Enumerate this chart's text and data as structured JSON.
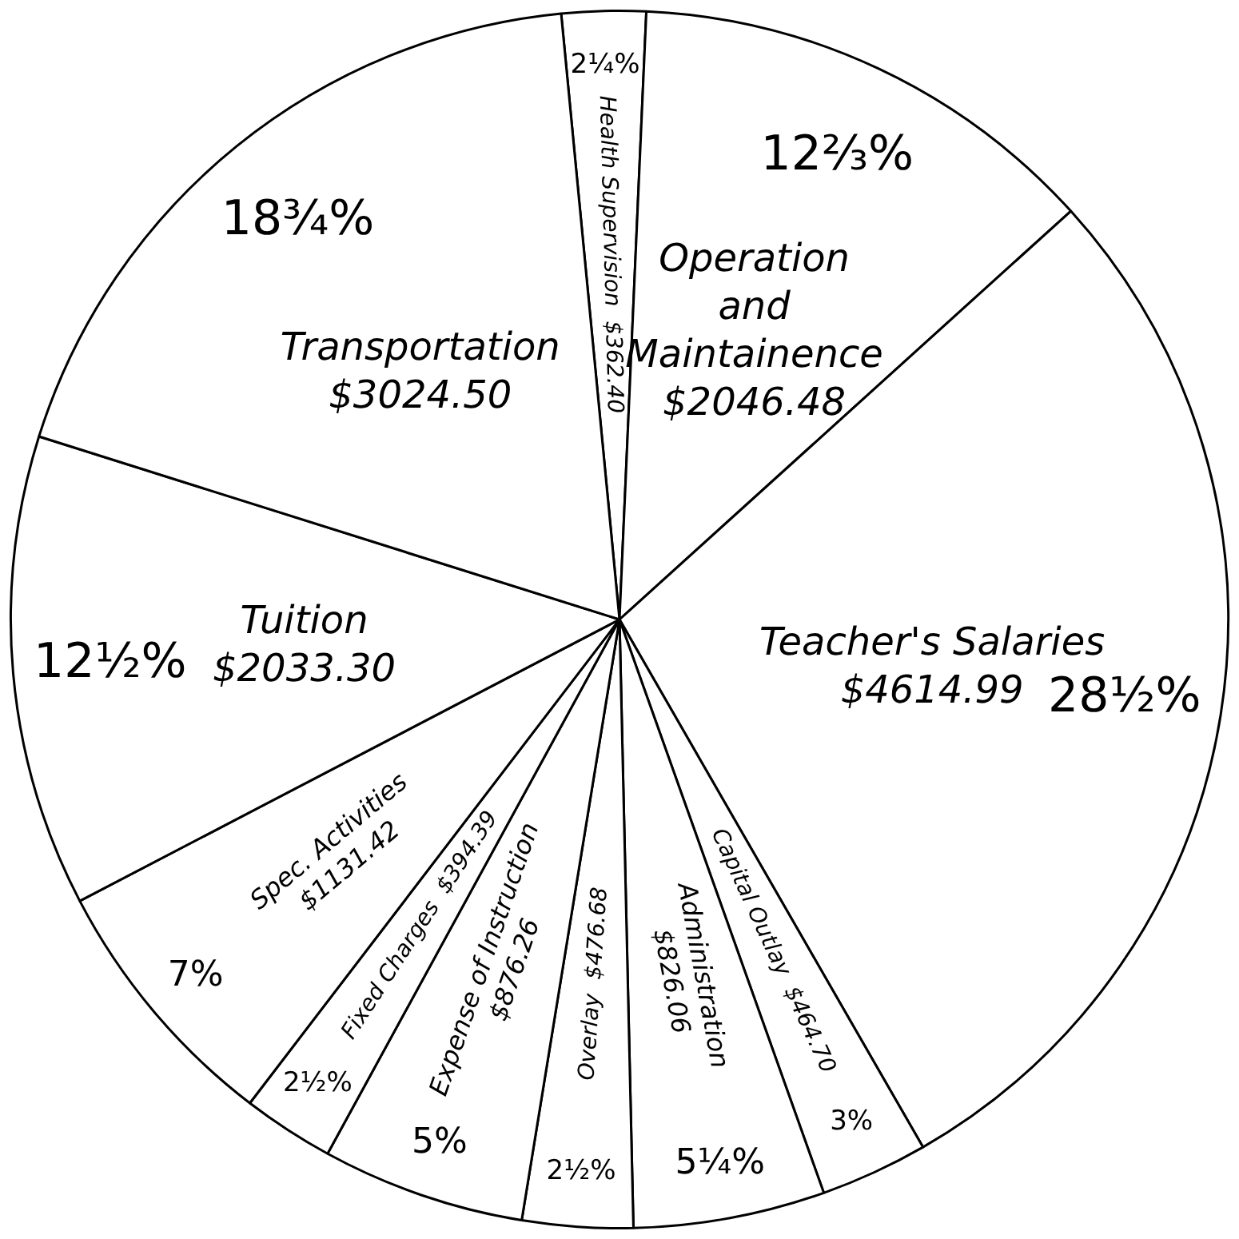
{
  "chart_data": {
    "type": "pie",
    "categories": [
      "Health Supervision",
      "Operation and Maintainence",
      "Teacher's Salaries",
      "Capital Outlay",
      "Administration",
      "Overlay",
      "Expense of Instruction",
      "Fixed Charges",
      "Spec. Activities",
      "Tuition",
      "Transportation"
    ],
    "values": [
      362.4,
      2046.48,
      4614.99,
      464.7,
      826.06,
      476.68,
      876.26,
      394.39,
      1131.42,
      2033.3,
      3024.5
    ],
    "value_labels": [
      "$362.40",
      "$2046.48",
      "$4614.99",
      "$464.70",
      "$826.06",
      "$476.68",
      "$876.26",
      "$394.39",
      "$1131.42",
      "$2033.30",
      "$3024.50"
    ],
    "colors": [
      "#ffffff",
      "#ffffff",
      "#ffffff",
      "#ffffff",
      "#ffffff",
      "#ffffff",
      "#ffffff",
      "#ffffff",
      "#ffffff",
      "#ffffff",
      "#ffffff"
    ],
    "annotations": [
      {
        "text": "2¼%",
        "x": "Health Supervision"
      },
      {
        "text": "12⅔%",
        "x": "Operation and Maintainence"
      },
      {
        "text": "28½%",
        "x": "Teacher's Salaries"
      },
      {
        "text": "3%",
        "x": "Capital Outlay"
      },
      {
        "text": "5¼%",
        "x": "Administration"
      },
      {
        "text": "2½%",
        "x": "Overlay"
      },
      {
        "text": "5%",
        "x": "Expense of Instruction"
      },
      {
        "text": "2½%",
        "x": "Fixed Charges"
      },
      {
        "text": "7%",
        "x": "Spec. Activities"
      },
      {
        "text": "12½%",
        "x": "Tuition"
      },
      {
        "text": "18¾%",
        "x": "Transportation"
      }
    ],
    "legend": false
  }
}
